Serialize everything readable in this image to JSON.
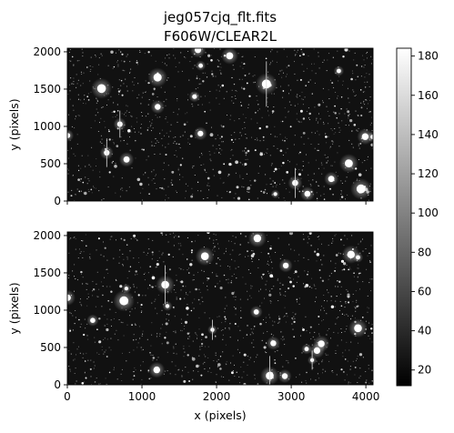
{
  "chart_data": {
    "type": "heatmap",
    "title": [
      "jeg057cjq_flt.fits",
      "F606W/CLEAR2L"
    ],
    "panels": [
      {
        "name": "top",
        "xlim": [
          0,
          4096
        ],
        "ylim": [
          0,
          2048
        ],
        "xticks": [
          0,
          1000,
          2000,
          3000,
          4000
        ],
        "yticks": [
          0,
          500,
          1000,
          1500,
          2000
        ],
        "xticklabels_visible": false,
        "ylabel": "y (pixels)",
        "xlabel": ""
      },
      {
        "name": "bottom",
        "xlim": [
          0,
          4096
        ],
        "ylim": [
          0,
          2048
        ],
        "xticks": [
          0,
          1000,
          2000,
          3000,
          4000
        ],
        "yticks": [
          0,
          500,
          1000,
          1500,
          2000
        ],
        "xticklabels_visible": true,
        "ylabel": "y (pixels)",
        "xlabel": "x (pixels)"
      }
    ],
    "colorbar": {
      "colormap": "gray",
      "range": [
        12,
        184
      ],
      "ticks": [
        20,
        40,
        60,
        80,
        100,
        120,
        140,
        160,
        180
      ]
    },
    "colors": {
      "low": "#000000",
      "high": "#ffffff"
    }
  }
}
